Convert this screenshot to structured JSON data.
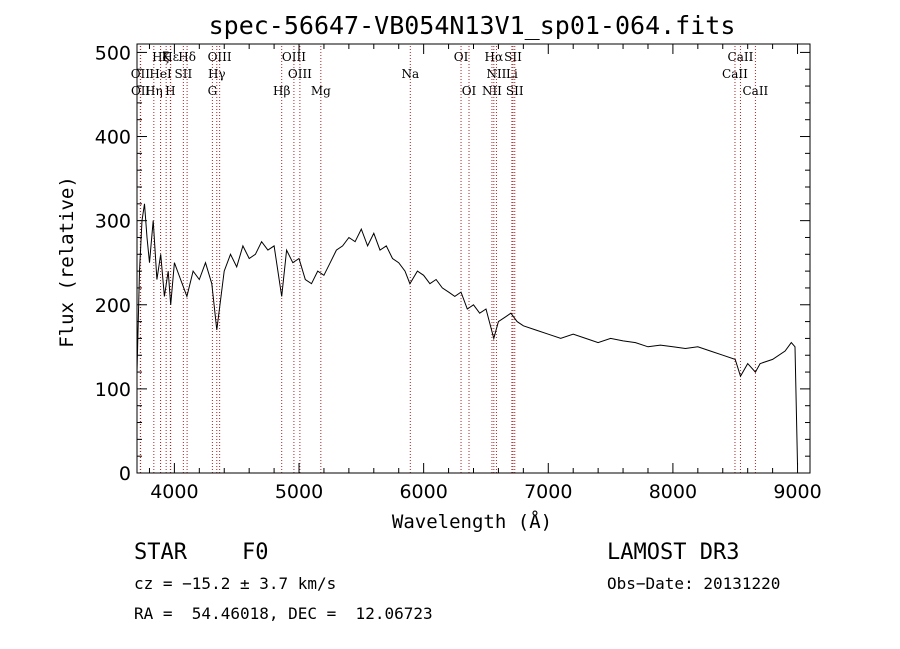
{
  "chart_data": {
    "type": "line",
    "title": "spec-56647-VB054N13V1_sp01-064.fits",
    "xlabel": "Wavelength (Å)",
    "ylabel": "Flux (relative)",
    "xlim": [
      3700,
      9100
    ],
    "ylim": [
      0,
      510
    ],
    "xticks": [
      4000,
      5000,
      6000,
      7000,
      8000,
      9000
    ],
    "yticks": [
      0,
      100,
      200,
      300,
      400,
      500
    ],
    "series": [
      {
        "name": "flux",
        "x": [
          3700,
          3720,
          3740,
          3760,
          3780,
          3800,
          3830,
          3860,
          3890,
          3920,
          3950,
          3970,
          4000,
          4050,
          4100,
          4150,
          4200,
          4250,
          4300,
          4340,
          4400,
          4450,
          4500,
          4550,
          4600,
          4650,
          4700,
          4750,
          4800,
          4861,
          4900,
          4950,
          5000,
          5050,
          5100,
          5150,
          5200,
          5250,
          5300,
          5350,
          5400,
          5450,
          5500,
          5550,
          5600,
          5650,
          5700,
          5750,
          5800,
          5850,
          5890,
          5950,
          6000,
          6050,
          6100,
          6150,
          6200,
          6250,
          6300,
          6350,
          6400,
          6450,
          6500,
          6563,
          6600,
          6650,
          6700,
          6750,
          6800,
          6900,
          7000,
          7100,
          7200,
          7300,
          7400,
          7500,
          7600,
          7700,
          7800,
          7900,
          8000,
          8100,
          8200,
          8300,
          8400,
          8500,
          8542,
          8600,
          8662,
          8700,
          8800,
          8900,
          8950,
          8980,
          9000
        ],
        "y": [
          120,
          240,
          300,
          320,
          280,
          250,
          300,
          230,
          260,
          210,
          240,
          200,
          250,
          230,
          210,
          240,
          230,
          250,
          225,
          170,
          240,
          260,
          245,
          270,
          255,
          260,
          275,
          265,
          270,
          210,
          265,
          250,
          255,
          230,
          225,
          240,
          235,
          250,
          265,
          270,
          280,
          275,
          290,
          270,
          285,
          265,
          270,
          255,
          250,
          240,
          225,
          240,
          235,
          225,
          230,
          220,
          215,
          210,
          215,
          195,
          200,
          190,
          195,
          160,
          180,
          185,
          190,
          180,
          175,
          170,
          165,
          160,
          165,
          160,
          155,
          160,
          157,
          155,
          150,
          152,
          150,
          148,
          150,
          145,
          140,
          135,
          115,
          130,
          120,
          130,
          135,
          145,
          155,
          150,
          10
        ]
      }
    ],
    "line_markers": [
      {
        "label": "Hε",
        "x": 3970,
        "row": 1
      },
      {
        "label": "Hζ",
        "x": 3889,
        "row": 1
      },
      {
        "label": "K",
        "x": 3934,
        "row": 1
      },
      {
        "label": "Hδ",
        "x": 4102,
        "row": 1
      },
      {
        "label": "OIII",
        "x": 4363,
        "row": 1
      },
      {
        "label": "OIII",
        "x": 4959,
        "row": 1
      },
      {
        "label": "OI",
        "x": 6300,
        "row": 1
      },
      {
        "label": "Hα",
        "x": 6563,
        "row": 1
      },
      {
        "label": "SII",
        "x": 6717,
        "row": 1
      },
      {
        "label": "CaII",
        "x": 8542,
        "row": 1
      },
      {
        "label": "OII",
        "x": 3727,
        "row": 2
      },
      {
        "label": "HeI",
        "x": 3889,
        "row": 2
      },
      {
        "label": "SII",
        "x": 4072,
        "row": 2
      },
      {
        "label": "Hγ",
        "x": 4340,
        "row": 2
      },
      {
        "label": "OIII",
        "x": 5007,
        "row": 2
      },
      {
        "label": "Na",
        "x": 5893,
        "row": 2
      },
      {
        "label": "NII",
        "x": 6584,
        "row": 2
      },
      {
        "label": "Li",
        "x": 6708,
        "row": 2
      },
      {
        "label": "CaII",
        "x": 8498,
        "row": 2
      },
      {
        "label": "OII",
        "x": 3729,
        "row": 3
      },
      {
        "label": "Hη",
        "x": 3835,
        "row": 3
      },
      {
        "label": "H",
        "x": 3968,
        "row": 3
      },
      {
        "label": "G",
        "x": 4305,
        "row": 3
      },
      {
        "label": "Hβ",
        "x": 4861,
        "row": 3
      },
      {
        "label": "Mg",
        "x": 5175,
        "row": 3
      },
      {
        "label": "OI",
        "x": 6364,
        "row": 3
      },
      {
        "label": "NII",
        "x": 6548,
        "row": 3
      },
      {
        "label": "SII",
        "x": 6731,
        "row": 3
      },
      {
        "label": "CaII",
        "x": 8662,
        "row": 3
      }
    ],
    "grid": false,
    "legend": "none"
  },
  "info": {
    "object_class": "STAR",
    "subclass": "F0",
    "survey": "LAMOST DR3",
    "redshift": "cz = −15.2 ± 3.7 km/s",
    "obs_date": "Obs−Date: 20131220",
    "coords": "RA =  54.46018, DEC =  12.06723"
  },
  "colors": {
    "axis": "#000000",
    "spectrum": "#000000",
    "marker": "#b22222"
  }
}
